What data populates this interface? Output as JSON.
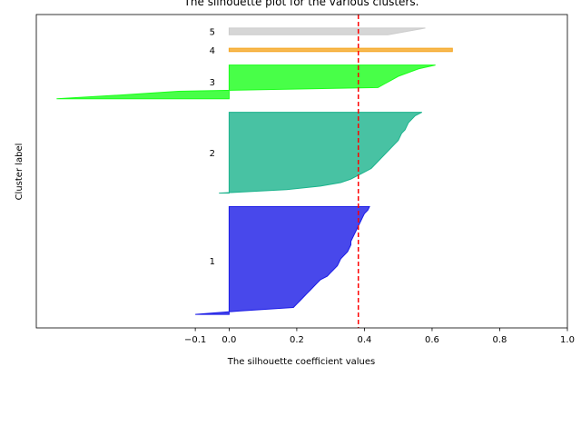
{
  "chart_data": {
    "type": "silhouette",
    "title": "The silhouette plot for the various clusters.",
    "xlabel": "The silhouette coefficient values",
    "ylabel": "Cluster label",
    "xlim": [
      -0.57,
      1.0
    ],
    "ylim": [
      0,
      93
    ],
    "xticks": [
      -0.1,
      0.0,
      0.2,
      0.4,
      0.6,
      0.8,
      1.0
    ],
    "xtick_labels": [
      "−0.1",
      "0.0",
      "0.2",
      "0.4",
      "0.6",
      "0.8",
      "1.0"
    ],
    "average_silhouette": 0.382,
    "average_line_color": "#ff0000",
    "clusters": [
      {
        "label": "1",
        "color": "#1a1ae6",
        "y_lower": 4,
        "y_upper": 36,
        "sorted_values": [
          -0.1,
          0.03,
          0.19,
          0.2,
          0.21,
          0.22,
          0.23,
          0.24,
          0.25,
          0.26,
          0.27,
          0.29,
          0.3,
          0.31,
          0.32,
          0.325,
          0.33,
          0.34,
          0.35,
          0.355,
          0.36,
          0.36,
          0.365,
          0.37,
          0.375,
          0.38,
          0.385,
          0.39,
          0.395,
          0.4,
          0.41,
          0.415
        ]
      },
      {
        "label": "2",
        "color": "#1ab38c",
        "y_lower": 40,
        "y_upper": 64,
        "sorted_values": [
          -0.03,
          0.17,
          0.27,
          0.33,
          0.36,
          0.38,
          0.4,
          0.42,
          0.43,
          0.44,
          0.45,
          0.46,
          0.47,
          0.48,
          0.49,
          0.5,
          0.505,
          0.51,
          0.52,
          0.525,
          0.53,
          0.54,
          0.55,
          0.57
        ]
      },
      {
        "label": "3",
        "color": "#1aff1a",
        "y_lower": 68,
        "y_upper": 78,
        "sorted_values": [
          -0.51,
          -0.32,
          -0.15,
          0.44,
          0.46,
          0.48,
          0.5,
          0.53,
          0.56,
          0.61
        ]
      },
      {
        "label": "4",
        "color": "#f5a623",
        "y_lower": 82,
        "y_upper": 83,
        "sorted_values": [
          0.66
        ]
      },
      {
        "label": "5",
        "color": "#cccccc",
        "y_lower": 87,
        "y_upper": 89,
        "sorted_values": [
          0.47,
          0.58
        ]
      }
    ]
  }
}
